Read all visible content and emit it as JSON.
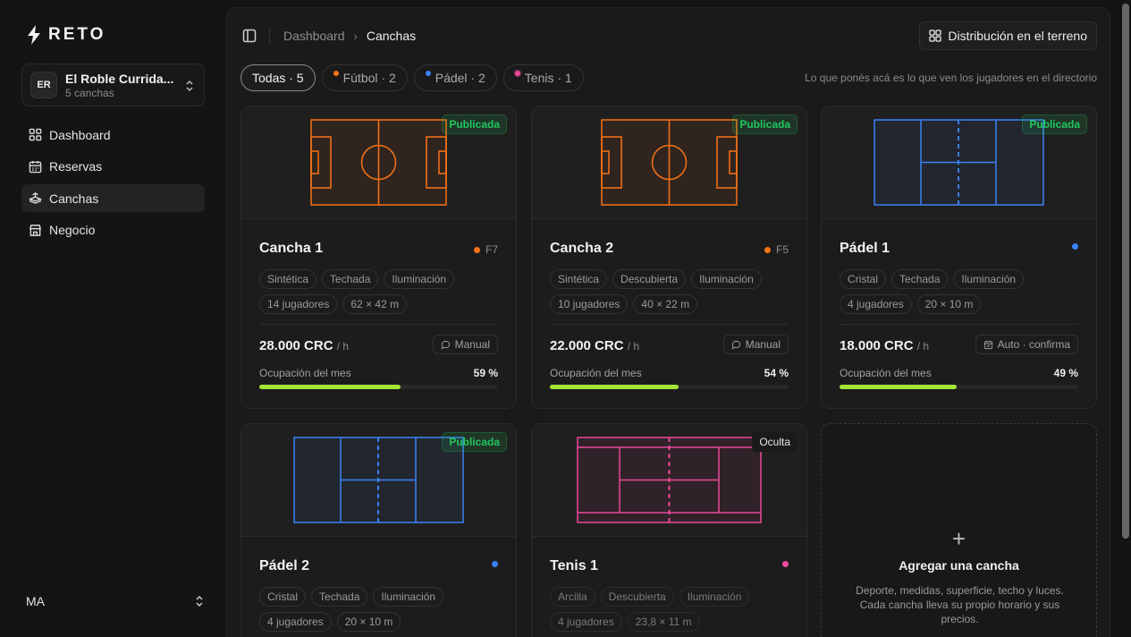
{
  "app": {
    "logo_text": "RETO"
  },
  "org": {
    "initials": "ER",
    "name": "El Roble Currida...",
    "subtitle": "5 canchas"
  },
  "nav": [
    {
      "label": "Dashboard",
      "icon": "grid-icon"
    },
    {
      "label": "Reservas",
      "icon": "calendar-icon"
    },
    {
      "label": "Canchas",
      "icon": "field-icon",
      "active": true
    },
    {
      "label": "Negocio",
      "icon": "store-icon"
    }
  ],
  "user": {
    "initials": "MA"
  },
  "breadcrumb": {
    "parent": "Dashboard",
    "current": "Canchas"
  },
  "toolbar": {
    "distribution_label": "Distribución en el terreno"
  },
  "filters": [
    {
      "label": "Todas · 5",
      "active": true
    },
    {
      "label": "Fútbol · 2",
      "color": "#f97316"
    },
    {
      "label": "Pádel · 2",
      "color": "#3b82f6"
    },
    {
      "label": "Tenis · 1",
      "color": "#ec4899"
    }
  ],
  "hint": "Lo que ponés acá es lo que ven los jugadores en el directorio",
  "cards": [
    {
      "title": "Cancha 1",
      "format": "F7",
      "color": "#f97316",
      "status": "Publicada",
      "tags": [
        "Sintética",
        "Techada",
        "Iluminación",
        "14 jugadores",
        "62 × 42 m"
      ],
      "price": "28.000 CRC",
      "unit": "/ h",
      "mode": "Manual",
      "occ_label": "Ocupación del mes",
      "occupancy": "59 %",
      "occ_fraction": 0.59
    },
    {
      "title": "Cancha 2",
      "format": "F5",
      "color": "#f97316",
      "status": "Publicada",
      "tags": [
        "Sintética",
        "Descubierta",
        "Iluminación",
        "10 jugadores",
        "40 × 22 m"
      ],
      "price": "22.000 CRC",
      "unit": "/ h",
      "mode": "Manual",
      "occ_label": "Ocupación del mes",
      "occupancy": "54 %",
      "occ_fraction": 0.54
    },
    {
      "title": "Pádel 1",
      "format": "",
      "color": "#3b82f6",
      "status": "Publicada",
      "tags": [
        "Cristal",
        "Techada",
        "Iluminación",
        "4 jugadores",
        "20 × 10 m"
      ],
      "price": "18.000 CRC",
      "unit": "/ h",
      "mode": "Auto · confirma",
      "occ_label": "Ocupación del mes",
      "occupancy": "49 %",
      "occ_fraction": 0.49
    },
    {
      "title": "Pádel 2",
      "format": "",
      "color": "#3b82f6",
      "status": "Publicada",
      "tags": [
        "Cristal",
        "Techada",
        "Iluminación",
        "4 jugadores",
        "20 × 10 m"
      ]
    },
    {
      "title": "Tenis 1",
      "format": "",
      "color": "#ec4899",
      "status": "Oculta",
      "tags": [
        "Arcilla",
        "Descubierta",
        "Iluminación",
        "4 jugadores",
        "23,8 × 11 m"
      ]
    }
  ],
  "add_card": {
    "plus": "+",
    "title": "Agregar una cancha",
    "description": "Deporte, medidas, superficie, techo y luces. Cada cancha lleva su propio horario y sus precios."
  }
}
